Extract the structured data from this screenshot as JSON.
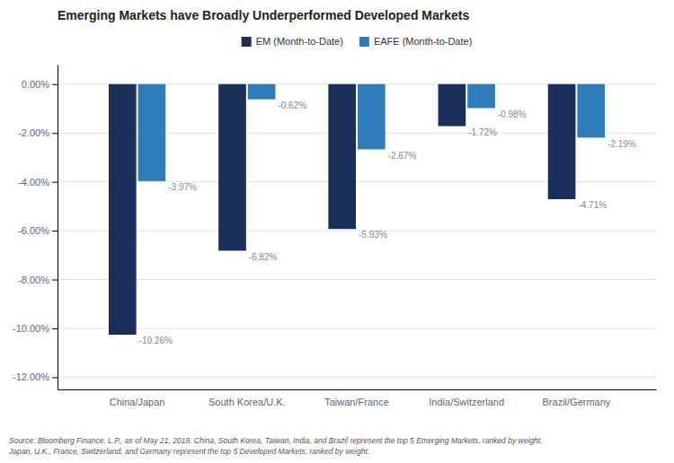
{
  "chart_data": {
    "type": "bar",
    "title": "Emerging Markets have Broadly Underperformed Developed Markets",
    "categories": [
      "China/Japan",
      "South Korea/U.K.",
      "Taiwan/France",
      "India/Switzerland",
      "Brazil/Germany"
    ],
    "series": [
      {
        "name": "EM (Month-to-Date)",
        "color": "#1a2e5a",
        "values": [
          -10.26,
          -6.82,
          -5.93,
          -1.72,
          -4.71
        ],
        "value_labels": [
          "-10.26%",
          "-6.82%",
          "-5.93%",
          "-1.72%",
          "-4.71%"
        ]
      },
      {
        "name": "EAFE (Month-to-Date)",
        "color": "#2e7dba",
        "values": [
          -3.97,
          -0.62,
          -2.67,
          -0.98,
          -2.19
        ],
        "value_labels": [
          "-3.97%",
          "-0.62%",
          "-2.67%",
          "-0.98%",
          "-2.19%"
        ]
      }
    ],
    "ylim": [
      -12.5,
      0.8
    ],
    "yticks": [
      {
        "value": 0.0,
        "label": "0.00%"
      },
      {
        "value": -2.0,
        "label": "-2.00%"
      },
      {
        "value": -4.0,
        "label": "-4.00%"
      },
      {
        "value": -6.0,
        "label": "-6.00%"
      },
      {
        "value": -8.0,
        "label": "-8.00%"
      },
      {
        "value": -10.0,
        "label": "-10.00%"
      },
      {
        "value": -12.0,
        "label": "-12.00%"
      }
    ],
    "grid": true,
    "legend": "top",
    "data_labels": true,
    "footnote": [
      "Source: Bloomberg Finance, L.P., as of May 21, 2019. China, South Korea, Taiwan, India, and Brazil represent the top 5 Emerging Markets, ranked by weight.",
      "Japan, U.K., France, Switzerland, and Germany represent the top 5 Developed Markets, ranked by weight."
    ]
  }
}
